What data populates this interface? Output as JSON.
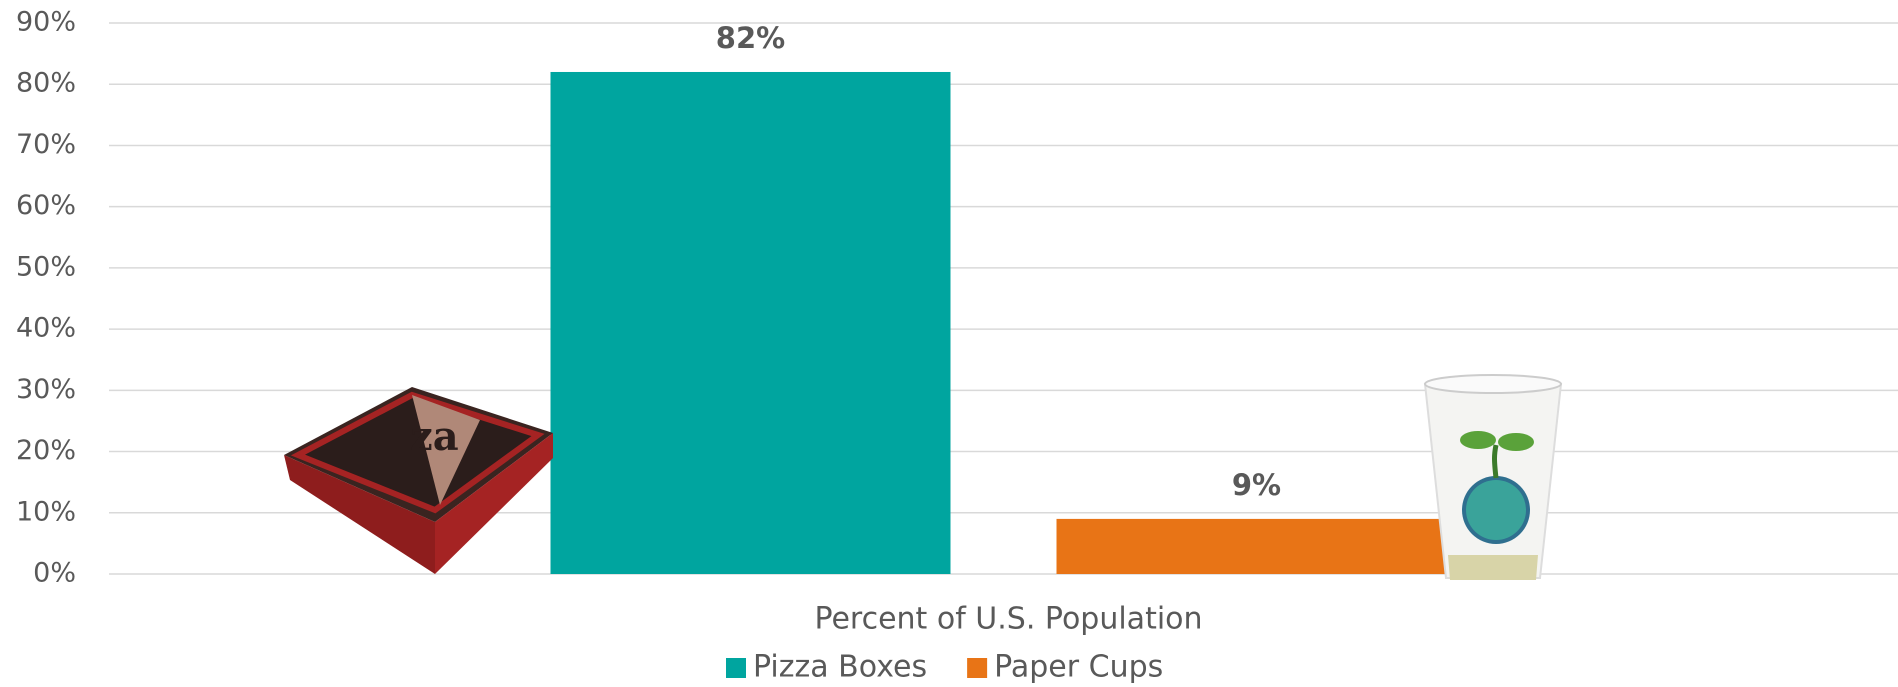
{
  "chart_data": {
    "type": "bar",
    "categories": [
      "Percent of U.S. Population"
    ],
    "series": [
      {
        "name": "Pizza Boxes",
        "color": "#00a59f",
        "values": [
          82
        ],
        "value_labels": [
          "82%"
        ]
      },
      {
        "name": "Paper Cups",
        "color": "#e87416",
        "values": [
          9
        ],
        "value_labels": [
          "9%"
        ]
      }
    ],
    "ylim": [
      0,
      90
    ],
    "yticks": [
      {
        "value": 0,
        "label": "0%"
      },
      {
        "value": 10,
        "label": "10%"
      },
      {
        "value": 20,
        "label": "20%"
      },
      {
        "value": 30,
        "label": "30%"
      },
      {
        "value": 40,
        "label": "40%"
      },
      {
        "value": 50,
        "label": "50%"
      },
      {
        "value": 60,
        "label": "60%"
      },
      {
        "value": 70,
        "label": "70%"
      },
      {
        "value": 80,
        "label": "80%"
      },
      {
        "value": 90,
        "label": "90%"
      }
    ],
    "grid": true,
    "legend": "bottom"
  }
}
